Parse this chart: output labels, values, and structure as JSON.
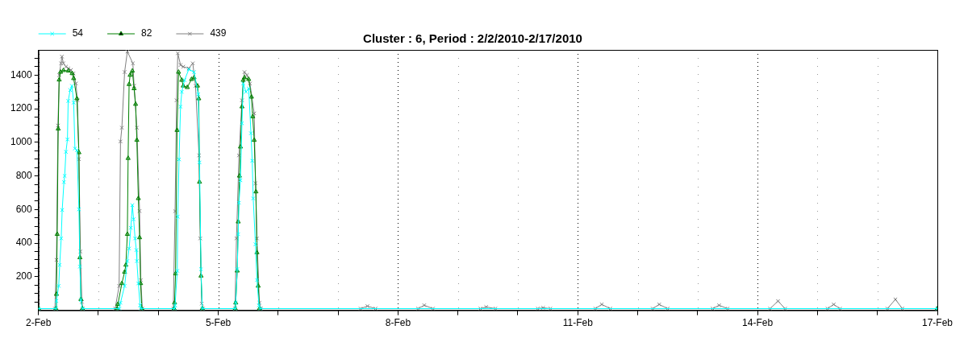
{
  "chart_data": {
    "type": "line",
    "title": "Cluster : 6, Period : 2/2/2010-2/17/2010",
    "legend": "top left",
    "grid": "x",
    "line_style": "solid",
    "xlim": [
      "2010-02-02",
      "2010-02-17"
    ],
    "xticks": [
      {
        "value": "2010-02-02",
        "label": "2-Feb"
      },
      {
        "value": "2010-02-03",
        "label": null
      },
      {
        "value": "2010-02-04",
        "label": null
      },
      {
        "value": "2010-02-05",
        "label": "5-Feb"
      },
      {
        "value": "2010-02-06",
        "label": null
      },
      {
        "value": "2010-02-07",
        "label": null
      },
      {
        "value": "2010-02-08",
        "label": "8-Feb"
      },
      {
        "value": "2010-02-09",
        "label": null
      },
      {
        "value": "2010-02-10",
        "label": null
      },
      {
        "value": "2010-02-11",
        "label": "11-Feb"
      },
      {
        "value": "2010-02-12",
        "label": null
      },
      {
        "value": "2010-02-13",
        "label": null
      },
      {
        "value": "2010-02-14",
        "label": "14-Feb"
      },
      {
        "value": "2010-02-15",
        "label": null
      },
      {
        "value": "2010-02-16",
        "label": null
      },
      {
        "value": "2010-02-17",
        "label": "17-Feb"
      }
    ],
    "ylim": [
      0,
      1550
    ],
    "yticks": [
      {
        "value": 50,
        "label": null
      },
      {
        "value": 100,
        "label": null
      },
      {
        "value": 150,
        "label": null
      },
      200,
      {
        "value": 250,
        "label": null
      },
      {
        "value": 300,
        "label": null
      },
      {
        "value": 350,
        "label": null
      },
      400,
      {
        "value": 450,
        "label": null
      },
      {
        "value": 500,
        "label": null
      },
      {
        "value": 550,
        "label": null
      },
      600,
      {
        "value": 650,
        "label": null
      },
      {
        "value": 700,
        "label": null
      },
      {
        "value": 750,
        "label": null
      },
      800,
      {
        "value": 850,
        "label": null
      },
      {
        "value": 900,
        "label": null
      },
      {
        "value": 950,
        "label": null
      },
      1000,
      {
        "value": 1050,
        "label": null
      },
      {
        "value": 1100,
        "label": null
      },
      {
        "value": 1150,
        "label": null
      },
      1200,
      {
        "value": 1250,
        "label": null
      },
      {
        "value": 1300,
        "label": null
      },
      {
        "value": 1350,
        "label": null
      },
      1400,
      {
        "value": 1450,
        "label": null
      },
      {
        "value": 1500,
        "label": null
      }
    ],
    "series": [
      {
        "name": "54",
        "color": "#00ffff",
        "marker": "cross",
        "x": [
          "2010-02-02T00:00",
          "2010-02-02T07:00",
          "2010-02-02T07:12",
          "2010-02-02T08:06",
          "2010-02-02T08:30",
          "2010-02-02T09:06",
          "2010-02-02T09:30",
          "2010-02-02T10:12",
          "2010-02-02T10:30",
          "2010-02-02T11:00",
          "2010-02-02T11:36",
          "2010-02-02T11:54",
          "2010-02-02T12:42",
          "2010-02-02T13:24",
          "2010-02-02T14:06",
          "2010-02-02T14:36",
          "2010-02-02T15:24",
          "2010-02-02T16:12",
          "2010-02-02T16:36",
          "2010-02-02T17:00",
          "2010-02-02T17:36",
          "2010-02-03T08:24",
          "2010-02-03T08:51",
          "2010-02-03T10:30",
          "2010-02-03T11:36",
          "2010-02-03T12:18",
          "2010-02-03T13:00",
          "2010-02-03T13:36",
          "2010-02-03T14:06",
          "2010-02-03T14:42",
          "2010-02-03T15:12",
          "2010-02-03T15:24",
          "2010-02-03T16:00",
          "2010-02-03T16:42",
          "2010-02-03T17:00",
          "2010-02-04T06:30",
          "2010-02-04T06:42",
          "2010-02-04T07:36",
          "2010-02-04T07:48",
          "2010-02-04T08:18",
          "2010-02-04T08:54",
          "2010-02-04T09:24",
          "2010-02-04T10:30",
          "2010-02-04T12:12",
          "2010-02-04T14:18",
          "2010-02-04T16:00",
          "2010-02-04T16:30",
          "2010-02-04T17:06",
          "2010-02-04T17:36",
          "2010-02-05T06:48",
          "2010-02-05T07:00",
          "2010-02-05T07:36",
          "2010-02-05T08:00",
          "2010-02-05T08:18",
          "2010-02-05T08:54",
          "2010-02-05T09:30",
          "2010-02-05T10:00",
          "2010-02-05T11:06",
          "2010-02-05T12:12",
          "2010-02-05T13:06",
          "2010-02-05T13:36",
          "2010-02-05T14:00",
          "2010-02-05T14:54",
          "2010-02-05T15:30",
          "2010-02-05T16:18",
          "2010-02-05T16:42",
          "2010-02-17T00:00"
        ],
        "values": [
          10,
          10,
          56,
          145,
          270,
          428,
          597,
          763,
          800,
          943,
          1017,
          1246,
          1311,
          1336,
          1236,
          963,
          953,
          601,
          260,
          61,
          10,
          10,
          45,
          145,
          293,
          368,
          491,
          626,
          542,
          428,
          359,
          293,
          160,
          30,
          10,
          10,
          30,
          235,
          557,
          898,
          1212,
          1300,
          1370,
          1434,
          1418,
          1286,
          880,
          245,
          10,
          10,
          45,
          245,
          453,
          640,
          774,
          1113,
          1350,
          1300,
          1320,
          1054,
          890,
          666,
          393,
          180,
          30,
          10,
          10
        ]
      },
      {
        "name": "82",
        "color": "#008000",
        "marker": "triangle",
        "x": [
          "2010-02-02T00:00",
          "2010-02-02T07:00",
          "2010-02-02T07:12",
          "2010-02-02T07:30",
          "2010-02-02T07:54",
          "2010-02-02T08:18",
          "2010-02-02T08:51",
          "2010-02-02T10:00",
          "2010-02-02T12:00",
          "2010-02-02T13:30",
          "2010-02-02T14:06",
          "2010-02-02T15:24",
          "2010-02-02T16:12",
          "2010-02-02T16:36",
          "2010-02-02T17:00",
          "2010-02-02T17:36",
          "2010-02-03T07:30",
          "2010-02-03T07:48",
          "2010-02-03T09:24",
          "2010-02-03T10:30",
          "2010-02-03T11:00",
          "2010-02-03T11:36",
          "2010-02-03T11:54",
          "2010-02-03T12:18",
          "2010-02-03T12:42",
          "2010-02-03T13:36",
          "2010-02-03T14:18",
          "2010-02-03T14:54",
          "2010-02-03T15:24",
          "2010-02-03T16:00",
          "2010-02-03T16:30",
          "2010-02-03T16:54",
          "2010-02-03T17:24",
          "2010-02-04T06:18",
          "2010-02-04T06:30",
          "2010-02-04T06:54",
          "2010-02-04T07:30",
          "2010-02-04T08:06",
          "2010-02-04T09:24",
          "2010-02-04T10:00",
          "2010-02-04T11:36",
          "2010-02-04T13:18",
          "2010-02-04T14:18",
          "2010-02-04T15:42",
          "2010-02-04T16:12",
          "2010-02-04T16:30",
          "2010-02-04T17:06",
          "2010-02-04T17:36",
          "2010-02-05T06:48",
          "2010-02-05T07:00",
          "2010-02-05T07:36",
          "2010-02-05T08:00",
          "2010-02-05T08:30",
          "2010-02-05T08:54",
          "2010-02-05T09:30",
          "2010-02-05T10:00",
          "2010-02-05T10:30",
          "2010-02-05T12:12",
          "2010-02-05T13:18",
          "2010-02-05T13:48",
          "2010-02-05T14:24",
          "2010-02-05T15:06",
          "2010-02-05T15:30",
          "2010-02-05T16:00",
          "2010-02-05T16:30",
          "2010-02-17T00:00"
        ],
        "values": [
          10,
          10,
          96,
          453,
          1080,
          1372,
          1418,
          1428,
          1425,
          1410,
          1380,
          1260,
          939,
          314,
          66,
          10,
          10,
          36,
          160,
          228,
          270,
          453,
          905,
          1345,
          1400,
          1425,
          1320,
          1227,
          1013,
          666,
          433,
          160,
          10,
          10,
          45,
          218,
          1072,
          1418,
          1370,
          1336,
          1327,
          1375,
          1385,
          1336,
          1260,
          764,
          205,
          10,
          10,
          45,
          235,
          527,
          800,
          973,
          1212,
          1370,
          1385,
          1375,
          1270,
          1153,
          1013,
          706,
          344,
          145,
          10,
          10
        ]
      },
      {
        "name": "439",
        "color": "#808080",
        "marker": "cross",
        "x": [
          "2010-02-02T00:00",
          "2010-02-02T06:36",
          "2010-02-02T07:12",
          "2010-02-02T07:48",
          "2010-02-02T08:18",
          "2010-02-02T09:00",
          "2010-02-02T09:24",
          "2010-02-02T10:00",
          "2010-02-02T11:00",
          "2010-02-02T12:00",
          "2010-02-02T13:00",
          "2010-02-02T14:00",
          "2010-02-02T15:00",
          "2010-02-02T15:36",
          "2010-02-02T16:12",
          "2010-02-02T16:48",
          "2010-02-02T17:24",
          "2010-02-02T17:48",
          "2010-02-03T06:42",
          "2010-02-03T08:18",
          "2010-02-03T08:51",
          "2010-02-03T09:24",
          "2010-02-03T10:30",
          "2010-02-03T11:36",
          "2010-02-03T13:48",
          "2010-02-03T14:18",
          "2010-02-03T15:24",
          "2010-02-03T16:30",
          "2010-02-03T17:00",
          "2010-02-03T17:36",
          "2010-02-04T06:00",
          "2010-02-04T06:42",
          "2010-02-04T07:18",
          "2010-02-04T07:48",
          "2010-02-04T08:54",
          "2010-02-04T10:00",
          "2010-02-04T12:12",
          "2010-02-04T13:48",
          "2010-02-04T14:54",
          "2010-02-04T16:18",
          "2010-02-04T16:48",
          "2010-02-04T17:24",
          "2010-02-04T17:54",
          "2010-02-05T06:42",
          "2010-02-05T07:18",
          "2010-02-05T08:18",
          "2010-02-05T09:30",
          "2010-02-05T10:30",
          "2010-02-05T11:30",
          "2010-02-05T12:42",
          "2010-02-05T14:24",
          "2010-02-05T14:54",
          "2010-02-05T15:30",
          "2010-02-05T16:30",
          "2010-02-05T17:06",
          "2010-02-07T09:00",
          "2010-02-07T11:45",
          "2010-02-07T15:00",
          "2010-02-08T08:00",
          "2010-02-08T10:30",
          "2010-02-08T14:00",
          "2010-02-09T09:00",
          "2010-02-09T11:18",
          "2010-02-09T15:00",
          "2010-02-10T08:00",
          "2010-02-10T10:06",
          "2010-02-10T13:00",
          "2010-02-11T07:00",
          "2010-02-11T09:36",
          "2010-02-11T13:00",
          "2010-02-12T06:00",
          "2010-02-12T08:36",
          "2010-02-12T12:00",
          "2010-02-13T06:00",
          "2010-02-13T08:36",
          "2010-02-13T12:00",
          "2010-02-14T05:00",
          "2010-02-14T08:12",
          "2010-02-14T11:00",
          "2010-02-15T04:00",
          "2010-02-15T06:30",
          "2010-02-15T09:00",
          "2010-02-16T04:00",
          "2010-02-16T07:12",
          "2010-02-16T10:00",
          "2010-02-17T00:00"
        ],
        "values": [
          10,
          10,
          300,
          1100,
          1400,
          1470,
          1510,
          1470,
          1450,
          1440,
          1430,
          1410,
          1350,
          1250,
          900,
          350,
          50,
          10,
          10,
          145,
          1005,
          1087,
          1418,
          1540,
          1470,
          1336,
          1087,
          591,
          180,
          10,
          10,
          590,
          1250,
          1530,
          1460,
          1450,
          1440,
          1470,
          1336,
          922,
          428,
          40,
          10,
          10,
          428,
          922,
          1250,
          1418,
          1400,
          1350,
          1172,
          756,
          428,
          45,
          10,
          10,
          25,
          10,
          10,
          30,
          10,
          10,
          20,
          10,
          10,
          15,
          10,
          10,
          35,
          10,
          10,
          35,
          10,
          10,
          30,
          10,
          10,
          55,
          10,
          10,
          35,
          10,
          10,
          65,
          10,
          10
        ]
      }
    ]
  }
}
